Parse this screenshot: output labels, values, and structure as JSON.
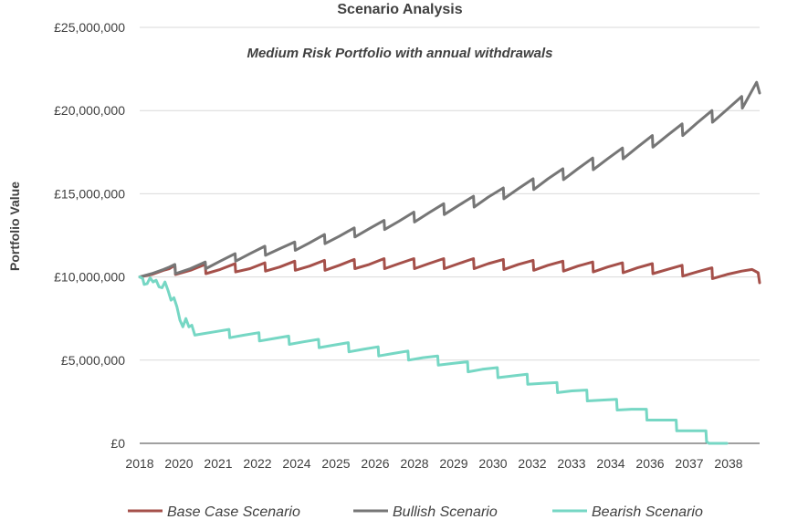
{
  "chart_data": {
    "type": "line",
    "title": "Scenario Analysis",
    "subtitle": "Medium Risk Portfolio with annual withdrawals",
    "xlabel": "",
    "ylabel": "Portfolio Value",
    "ylim": [
      0,
      25000000
    ],
    "xlim": [
      2018.0,
      2038.8
    ],
    "yticks": [
      0,
      5000000,
      10000000,
      15000000,
      20000000,
      25000000
    ],
    "ytick_labels": [
      "£0",
      "£5,000,000",
      "£10,000,000",
      "£15,000,000",
      "£20,000,000",
      "£25,000,000"
    ],
    "xtick_labels": [
      "2018",
      "2020",
      "2021",
      "2022",
      "2024",
      "2025",
      "2026",
      "2028",
      "2029",
      "2030",
      "2032",
      "2033",
      "2034",
      "2036",
      "2037",
      "2038"
    ],
    "grid": true,
    "legend": "bottom",
    "series": [
      {
        "name": "Base Case Scenario",
        "color": "#a5504a",
        "points": [
          [
            2018.0,
            10000000
          ],
          [
            2018.4,
            10150000
          ],
          [
            2018.8,
            10400000
          ],
          [
            2019.0,
            10500000
          ],
          [
            2019.18,
            10700000
          ],
          [
            2019.2,
            10150000
          ],
          [
            2019.7,
            10400000
          ],
          [
            2020.2,
            10750000
          ],
          [
            2020.22,
            10200000
          ],
          [
            2020.7,
            10450000
          ],
          [
            2021.2,
            10800000
          ],
          [
            2021.22,
            10300000
          ],
          [
            2021.7,
            10500000
          ],
          [
            2022.2,
            10850000
          ],
          [
            2022.22,
            10350000
          ],
          [
            2022.7,
            10600000
          ],
          [
            2023.2,
            10950000
          ],
          [
            2023.22,
            10400000
          ],
          [
            2023.7,
            10650000
          ],
          [
            2024.2,
            11000000
          ],
          [
            2024.22,
            10400000
          ],
          [
            2024.7,
            10700000
          ],
          [
            2025.2,
            11050000
          ],
          [
            2025.22,
            10500000
          ],
          [
            2025.7,
            10750000
          ],
          [
            2026.2,
            11100000
          ],
          [
            2026.22,
            10500000
          ],
          [
            2026.7,
            10800000
          ],
          [
            2027.2,
            11100000
          ],
          [
            2027.22,
            10500000
          ],
          [
            2027.7,
            10800000
          ],
          [
            2028.2,
            11100000
          ],
          [
            2028.22,
            10500000
          ],
          [
            2028.7,
            10800000
          ],
          [
            2029.2,
            11100000
          ],
          [
            2029.22,
            10500000
          ],
          [
            2029.7,
            10800000
          ],
          [
            2030.2,
            11050000
          ],
          [
            2030.22,
            10450000
          ],
          [
            2030.7,
            10750000
          ],
          [
            2031.2,
            11000000
          ],
          [
            2031.22,
            10400000
          ],
          [
            2031.7,
            10700000
          ],
          [
            2032.2,
            10950000
          ],
          [
            2032.22,
            10350000
          ],
          [
            2032.7,
            10650000
          ],
          [
            2033.2,
            10900000
          ],
          [
            2033.22,
            10300000
          ],
          [
            2033.7,
            10600000
          ],
          [
            2034.2,
            10850000
          ],
          [
            2034.22,
            10250000
          ],
          [
            2034.7,
            10550000
          ],
          [
            2035.2,
            10800000
          ],
          [
            2035.22,
            10200000
          ],
          [
            2035.7,
            10450000
          ],
          [
            2036.2,
            10700000
          ],
          [
            2036.22,
            10050000
          ],
          [
            2036.7,
            10300000
          ],
          [
            2037.2,
            10550000
          ],
          [
            2037.22,
            9900000
          ],
          [
            2037.7,
            10150000
          ],
          [
            2038.2,
            10350000
          ],
          [
            2038.55,
            10450000
          ],
          [
            2038.75,
            10250000
          ],
          [
            2038.8,
            9650000
          ]
        ]
      },
      {
        "name": "Bullish Scenario",
        "color": "#767676",
        "points": [
          [
            2018.0,
            10000000
          ],
          [
            2018.4,
            10200000
          ],
          [
            2018.8,
            10450000
          ],
          [
            2019.0,
            10600000
          ],
          [
            2019.18,
            10750000
          ],
          [
            2019.2,
            10200000
          ],
          [
            2019.7,
            10500000
          ],
          [
            2020.2,
            10900000
          ],
          [
            2020.22,
            10500000
          ],
          [
            2020.7,
            10950000
          ],
          [
            2021.2,
            11400000
          ],
          [
            2021.22,
            10950000
          ],
          [
            2021.7,
            11400000
          ],
          [
            2022.2,
            11850000
          ],
          [
            2022.22,
            11300000
          ],
          [
            2022.7,
            11700000
          ],
          [
            2023.2,
            12100000
          ],
          [
            2023.22,
            11600000
          ],
          [
            2023.7,
            12050000
          ],
          [
            2024.2,
            12550000
          ],
          [
            2024.22,
            12000000
          ],
          [
            2024.7,
            12450000
          ],
          [
            2025.2,
            12950000
          ],
          [
            2025.22,
            12400000
          ],
          [
            2025.7,
            12900000
          ],
          [
            2026.2,
            13400000
          ],
          [
            2026.22,
            12850000
          ],
          [
            2026.7,
            13350000
          ],
          [
            2027.2,
            13900000
          ],
          [
            2027.22,
            13300000
          ],
          [
            2027.7,
            13850000
          ],
          [
            2028.2,
            14400000
          ],
          [
            2028.22,
            13750000
          ],
          [
            2028.7,
            14300000
          ],
          [
            2029.2,
            14850000
          ],
          [
            2029.22,
            14200000
          ],
          [
            2029.7,
            14800000
          ],
          [
            2030.2,
            15350000
          ],
          [
            2030.22,
            14700000
          ],
          [
            2030.7,
            15300000
          ],
          [
            2031.2,
            15900000
          ],
          [
            2031.22,
            15250000
          ],
          [
            2031.7,
            15900000
          ],
          [
            2032.2,
            16500000
          ],
          [
            2032.22,
            15850000
          ],
          [
            2032.7,
            16500000
          ],
          [
            2033.2,
            17150000
          ],
          [
            2033.22,
            16450000
          ],
          [
            2033.7,
            17100000
          ],
          [
            2034.2,
            17750000
          ],
          [
            2034.22,
            17100000
          ],
          [
            2034.7,
            17800000
          ],
          [
            2035.2,
            18500000
          ],
          [
            2035.22,
            17800000
          ],
          [
            2035.7,
            18500000
          ],
          [
            2036.2,
            19200000
          ],
          [
            2036.22,
            18500000
          ],
          [
            2036.7,
            19250000
          ],
          [
            2037.2,
            20000000
          ],
          [
            2037.22,
            19300000
          ],
          [
            2037.7,
            20050000
          ],
          [
            2038.2,
            20850000
          ],
          [
            2038.22,
            20150000
          ],
          [
            2038.7,
            21700000
          ],
          [
            2038.8,
            21050000
          ]
        ]
      },
      {
        "name": "Bearish Scenario",
        "color": "#76d7c4",
        "points": [
          [
            2018.0,
            10000000
          ],
          [
            2018.1,
            9900000
          ],
          [
            2018.15,
            9550000
          ],
          [
            2018.25,
            9600000
          ],
          [
            2018.35,
            9950000
          ],
          [
            2018.45,
            9700000
          ],
          [
            2018.55,
            9800000
          ],
          [
            2018.65,
            9400000
          ],
          [
            2018.75,
            9350000
          ],
          [
            2018.85,
            9700000
          ],
          [
            2018.95,
            9200000
          ],
          [
            2019.05,
            8600000
          ],
          [
            2019.15,
            8750000
          ],
          [
            2019.25,
            8200000
          ],
          [
            2019.35,
            7400000
          ],
          [
            2019.45,
            7000000
          ],
          [
            2019.55,
            7500000
          ],
          [
            2019.65,
            7000000
          ],
          [
            2019.75,
            7100000
          ],
          [
            2019.85,
            6500000
          ],
          [
            2020.0,
            6550000
          ],
          [
            2020.5,
            6700000
          ],
          [
            2021.0,
            6850000
          ],
          [
            2021.02,
            6350000
          ],
          [
            2021.5,
            6500000
          ],
          [
            2022.0,
            6650000
          ],
          [
            2022.02,
            6150000
          ],
          [
            2022.5,
            6300000
          ],
          [
            2023.0,
            6450000
          ],
          [
            2023.02,
            5950000
          ],
          [
            2023.5,
            6100000
          ],
          [
            2024.0,
            6250000
          ],
          [
            2024.02,
            5750000
          ],
          [
            2024.5,
            5900000
          ],
          [
            2025.0,
            6050000
          ],
          [
            2025.02,
            5500000
          ],
          [
            2025.5,
            5650000
          ],
          [
            2026.0,
            5800000
          ],
          [
            2026.02,
            5250000
          ],
          [
            2026.5,
            5400000
          ],
          [
            2027.0,
            5550000
          ],
          [
            2027.02,
            5000000
          ],
          [
            2027.5,
            5150000
          ],
          [
            2028.0,
            5250000
          ],
          [
            2028.02,
            4700000
          ],
          [
            2028.5,
            4800000
          ],
          [
            2029.0,
            4900000
          ],
          [
            2029.02,
            4300000
          ],
          [
            2029.5,
            4450000
          ],
          [
            2030.0,
            4550000
          ],
          [
            2030.02,
            3950000
          ],
          [
            2030.5,
            4050000
          ],
          [
            2031.0,
            4150000
          ],
          [
            2031.02,
            3550000
          ],
          [
            2031.5,
            3600000
          ],
          [
            2032.0,
            3650000
          ],
          [
            2032.02,
            3050000
          ],
          [
            2032.5,
            3150000
          ],
          [
            2033.0,
            3200000
          ],
          [
            2033.02,
            2550000
          ],
          [
            2033.5,
            2600000
          ],
          [
            2034.0,
            2650000
          ],
          [
            2034.02,
            2000000
          ],
          [
            2034.5,
            2050000
          ],
          [
            2035.0,
            2050000
          ],
          [
            2035.02,
            1400000
          ],
          [
            2035.5,
            1400000
          ],
          [
            2036.0,
            1400000
          ],
          [
            2036.02,
            750000
          ],
          [
            2036.5,
            750000
          ],
          [
            2037.0,
            750000
          ],
          [
            2037.02,
            100000
          ],
          [
            2037.1,
            0
          ],
          [
            2037.7,
            0
          ]
        ]
      }
    ]
  }
}
